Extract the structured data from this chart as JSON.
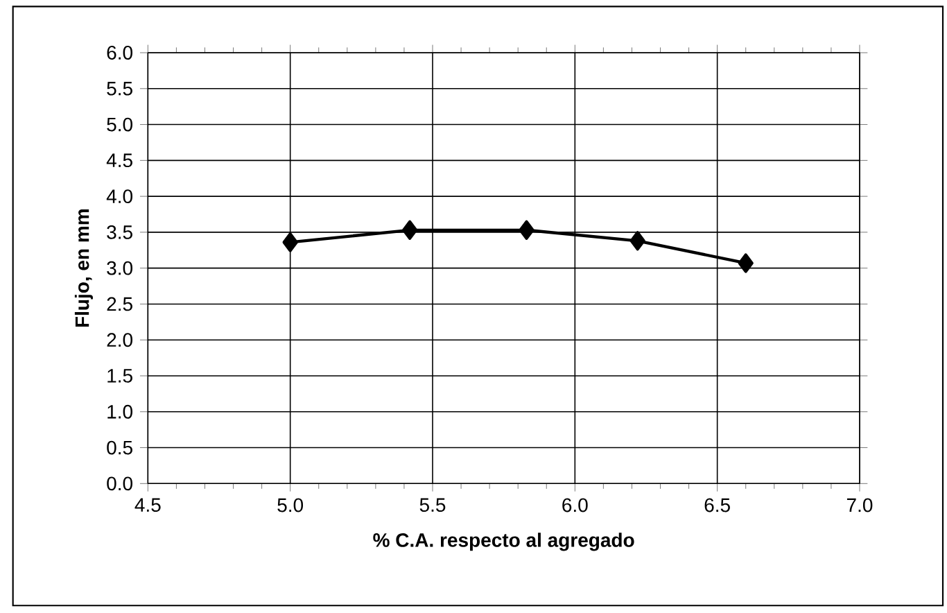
{
  "chart_data": {
    "type": "line",
    "xlabel": "% C.A. respecto al agregado",
    "ylabel": "Flujo, en mm",
    "x": [
      5.0,
      5.42,
      5.83,
      6.22,
      6.6
    ],
    "series": [
      {
        "color": "#000000",
        "values": [
          3.36,
          3.53,
          3.53,
          3.38,
          3.07
        ]
      }
    ],
    "xlim": [
      4.5,
      7.0
    ],
    "xticks": [
      {
        "value": 4.5,
        "label": "4.5"
      },
      {
        "value": 5.0,
        "label": "5.0"
      },
      {
        "value": 5.5,
        "label": "5.5"
      },
      {
        "value": 6.0,
        "label": "6.0"
      },
      {
        "value": 6.5,
        "label": "6.5"
      },
      {
        "value": 7.0,
        "label": "7.0"
      }
    ],
    "ylim": [
      0,
      6.0
    ],
    "yticks": [
      {
        "value": 0,
        "label": "0.0"
      },
      {
        "value": 0.5,
        "label": "0.5"
      },
      {
        "value": 1.0,
        "label": "1.0"
      },
      {
        "value": 1.5,
        "label": "1.5"
      },
      {
        "value": 2.0,
        "label": "2.0"
      },
      {
        "value": 2.5,
        "label": "2.5"
      },
      {
        "value": 3.0,
        "label": "3.0"
      },
      {
        "value": 3.5,
        "label": "3.5"
      },
      {
        "value": 4.0,
        "label": "4.0"
      },
      {
        "value": 4.5,
        "label": "4.5"
      },
      {
        "value": 5.0,
        "label": "5.0"
      },
      {
        "value": 5.5,
        "label": "5.5"
      },
      {
        "value": 6.0,
        "label": "6.0"
      }
    ],
    "grid": true,
    "marker": "diamond",
    "line_style": "solid"
  }
}
